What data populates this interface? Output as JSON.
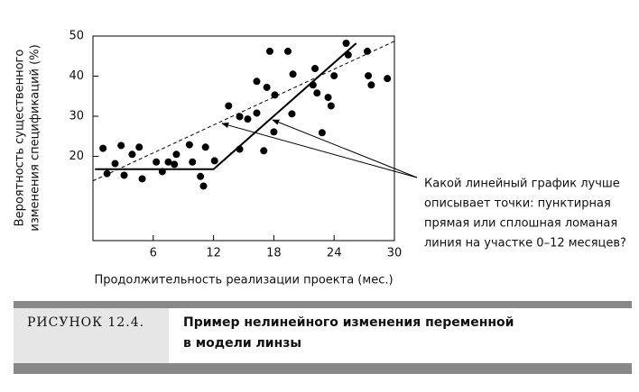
{
  "chart_data": {
    "type": "scatter",
    "x_label": "Продолжительность реализации проекта (мес.)",
    "y_label": [
      "Вероятность существенного",
      "изменения спецификаций (%)"
    ],
    "annotation": [
      "Какой линейный график лучше",
      "описывает точки: пунктирная",
      "прямая или сплошная ломаная",
      "линия на участке 0–12 месяцев?"
    ],
    "xlim": [
      0,
      30
    ],
    "ylim": [
      -1,
      50
    ],
    "xticks": [
      6,
      12,
      18,
      24,
      30
    ],
    "yticks": [
      20,
      30,
      40,
      50
    ],
    "color": "#000000",
    "x": [
      1.0,
      1.4,
      2.2,
      2.8,
      3.1,
      3.9,
      4.6,
      4.9,
      6.3,
      6.9,
      7.5,
      8.1,
      8.3,
      9.6,
      9.9,
      10.7,
      11.0,
      11.2,
      12.1,
      13.5,
      14.6,
      14.6,
      15.4,
      16.3,
      16.3,
      17.0,
      17.3,
      17.6,
      18.0,
      18.1,
      19.4,
      19.9,
      19.8,
      22.1,
      21.9,
      22.3,
      22.8,
      23.4,
      23.7,
      24.0,
      25.2,
      25.4,
      27.3,
      27.4,
      27.7,
      29.3
    ],
    "values": [
      22.0,
      15.7,
      18.2,
      22.7,
      15.3,
      20.5,
      22.3,
      14.4,
      18.6,
      16.2,
      18.6,
      18.0,
      20.5,
      22.9,
      18.6,
      15.0,
      12.6,
      22.3,
      18.9,
      32.6,
      21.8,
      29.9,
      29.3,
      38.7,
      30.8,
      21.4,
      37.2,
      46.2,
      26.1,
      35.3,
      46.2,
      40.5,
      30.6,
      41.9,
      37.8,
      35.8,
      25.9,
      34.7,
      32.6,
      40.1,
      48.2,
      45.3,
      46.2,
      40.1,
      37.8,
      39.4
    ],
    "lines": [
      {
        "style": "dashed",
        "x": [
          0,
          30
        ],
        "y": [
          13.9,
          48.7
        ]
      },
      {
        "style": "solid",
        "x": [
          0.2,
          12,
          26.2
        ],
        "y": [
          16.8,
          16.8,
          48.2
        ]
      }
    ]
  },
  "caption": {
    "label": "РИСУНОК 12.4.",
    "lines": [
      "Пример нелинейного изменения переменной",
      "в модели линзы"
    ]
  }
}
